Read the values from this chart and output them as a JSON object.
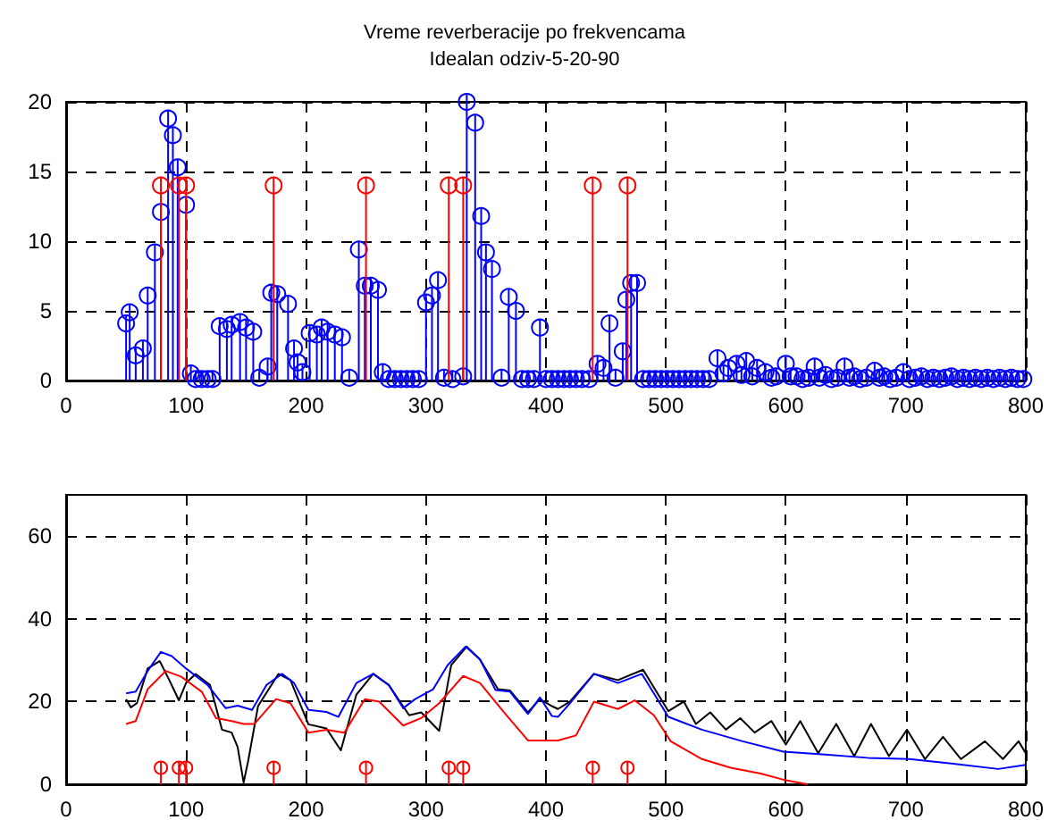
{
  "chart_data": [
    {
      "type": "lollipop",
      "title": "Vreme reverberacije po frekvencama",
      "subtitle": "Idealan odziv-5-20-90",
      "xlim": [
        0,
        800
      ],
      "xticks": [
        0,
        100,
        200,
        300,
        400,
        500,
        600,
        700,
        800
      ],
      "ylim": [
        0,
        20
      ],
      "yticks": [
        0,
        5,
        10,
        15,
        20
      ],
      "grid": true,
      "marker": "circle",
      "series": [
        {
          "color": "#0000ff",
          "x": [
            50,
            53,
            58,
            64,
            68,
            74,
            79,
            85,
            89,
            93,
            100,
            104,
            108,
            113,
            118,
            122,
            128,
            134,
            138,
            145,
            150,
            156,
            161,
            168,
            171,
            176,
            185,
            190,
            193,
            197,
            203,
            209,
            213,
            218,
            224,
            230,
            236,
            244,
            249,
            254,
            260,
            264,
            269,
            274,
            279,
            284,
            289,
            294,
            300,
            305,
            310,
            315,
            322,
            331,
            334,
            341,
            346,
            350,
            355,
            363,
            369,
            375,
            380,
            385,
            390,
            395,
            400,
            405,
            410,
            415,
            420,
            425,
            430,
            436,
            443,
            448,
            453,
            458,
            464,
            467,
            471,
            476,
            481,
            486,
            491,
            496,
            501,
            506,
            511,
            516,
            521,
            526,
            531,
            536,
            543,
            548,
            552,
            559,
            563,
            567,
            572,
            576,
            583,
            588,
            592,
            600,
            604,
            609,
            614,
            619,
            624,
            628,
            633,
            638,
            643,
            649,
            653,
            657,
            662,
            667,
            674,
            678,
            682,
            687,
            692,
            698,
            703,
            708,
            713,
            718,
            723,
            728,
            733,
            738,
            743,
            748,
            753,
            758,
            763,
            768,
            773,
            778,
            783,
            788,
            793,
            798
          ],
          "values": [
            4.1,
            4.9,
            1.8,
            2.3,
            6.1,
            9.2,
            12.1,
            18.8,
            17.6,
            15.3,
            12.6,
            0.5,
            0.1,
            0.1,
            0.1,
            0.1,
            3.9,
            3.7,
            4.0,
            4.2,
            3.8,
            3.5,
            0.2,
            1.0,
            6.3,
            6.2,
            5.5,
            2.3,
            1.3,
            0.6,
            3.4,
            3.3,
            3.8,
            3.5,
            3.3,
            3.1,
            0.2,
            9.4,
            6.8,
            6.8,
            6.5,
            0.6,
            0.1,
            0.1,
            0.1,
            0.1,
            0.1,
            0.1,
            5.6,
            6.1,
            7.2,
            0.2,
            0.1,
            0.3,
            20,
            18.5,
            11.8,
            9.2,
            8.0,
            0.2,
            6.0,
            5.0,
            0.1,
            0.1,
            0.1,
            3.8,
            0.1,
            0.1,
            0.1,
            0.1,
            0.1,
            0.1,
            0.1,
            0.1,
            1.2,
            0.9,
            4.1,
            0.2,
            2.1,
            5.8,
            7.0,
            7.0,
            0.1,
            0.1,
            0.1,
            0.1,
            0.1,
            0.1,
            0.1,
            0.1,
            0.1,
            0.1,
            0.1,
            0.1,
            1.6,
            0.5,
            0.9,
            1.2,
            0.4,
            1.4,
            0.3,
            0.9,
            0.6,
            0.2,
            0.3,
            1.2,
            0.3,
            0.3,
            0.1,
            0.2,
            1.0,
            0.2,
            0.4,
            0.1,
            0.2,
            1.0,
            0.2,
            0.3,
            0.1,
            0.2,
            0.7,
            0.2,
            0.3,
            0.1,
            0.2,
            0.6,
            0.1,
            0.2,
            0.3,
            0.1,
            0.2,
            0.1,
            0.2,
            0.3,
            0.1,
            0.2,
            0.1,
            0.2,
            0.1,
            0.2,
            0.1,
            0.2,
            0.1,
            0.2,
            0.1,
            0.1
          ]
        },
        {
          "color": "#ff0000",
          "x": [
            79,
            94,
            100,
            173,
            250,
            319,
            331,
            439,
            468
          ],
          "values": [
            14,
            14,
            14,
            14,
            14,
            14,
            14,
            14,
            14
          ]
        }
      ]
    },
    {
      "type": "line",
      "xlim": [
        0,
        800
      ],
      "xticks": [
        0,
        100,
        200,
        300,
        400,
        500,
        600,
        700,
        800
      ],
      "ylim": [
        0,
        70
      ],
      "yticks": [
        0,
        20,
        40,
        60
      ],
      "grid": true,
      "series": [
        {
          "color": "#000000",
          "x": [
            50,
            54,
            59,
            68,
            78,
            86,
            94,
            100,
            108,
            120,
            130,
            138,
            143,
            148,
            152,
            160,
            177,
            187,
            202,
            217,
            229,
            242,
            256,
            269,
            286,
            296,
            311,
            321,
            334,
            345,
            360,
            370,
            385,
            395,
            405,
            410,
            420,
            440,
            460,
            481,
            502,
            515,
            525,
            537,
            550,
            562,
            574,
            588,
            600,
            612,
            627,
            642,
            657,
            671,
            686,
            701,
            716,
            731,
            746,
            766,
            781,
            794,
            800
          ],
          "values": [
            20.6,
            18.6,
            19.6,
            28,
            29.8,
            25.2,
            20.3,
            24.5,
            26.7,
            24,
            13.2,
            12.5,
            9,
            0.4,
            6,
            18.9,
            26.7,
            25.2,
            14.5,
            13.5,
            8.2,
            21.7,
            26.7,
            24,
            16.7,
            17.4,
            12.9,
            28.8,
            33.3,
            30.2,
            23,
            22.7,
            17.4,
            20.6,
            18.9,
            18.2,
            20,
            26.7,
            25.2,
            27.7,
            17.7,
            20,
            14.6,
            17.4,
            13.2,
            16,
            12.5,
            15.3,
            9.6,
            15.3,
            7.5,
            14.6,
            6.8,
            14.6,
            6.8,
            13.2,
            6.1,
            11.5,
            6.1,
            10.4,
            6.1,
            10.4,
            7.5
          ]
        },
        {
          "color": "#0000ff",
          "x": [
            50,
            58,
            68,
            79,
            88,
            100,
            118,
            133,
            143,
            155,
            167,
            180,
            190,
            202,
            217,
            227,
            242,
            256,
            269,
            281,
            291,
            306,
            318,
            333,
            345,
            358,
            370,
            385,
            395,
            405,
            410,
            420,
            440,
            460,
            480,
            502,
            530,
            564,
            598,
            633,
            668,
            703,
            738,
            777,
            800
          ],
          "values": [
            22,
            22.4,
            27.4,
            32,
            31,
            28,
            24,
            18.4,
            19,
            18,
            24,
            26.7,
            24.5,
            18,
            17.5,
            16.3,
            24.5,
            26.7,
            24,
            18.4,
            20.6,
            23,
            28.8,
            33.3,
            30.2,
            22.8,
            22.4,
            17,
            21,
            16.5,
            16.3,
            19.6,
            26.7,
            24.5,
            26.7,
            16.3,
            13.2,
            10.4,
            7.9,
            7.2,
            6.4,
            6.1,
            5,
            3.7,
            4.7
          ]
        },
        {
          "color": "#ff0000",
          "x": [
            50,
            58,
            68,
            83,
            96,
            113,
            125,
            138,
            148,
            157,
            175,
            187,
            202,
            217,
            232,
            249,
            261,
            281,
            296,
            311,
            331,
            345,
            365,
            385,
            405,
            410,
            425,
            440,
            460,
            474,
            490,
            504,
            530,
            554,
            579,
            598,
            618
          ],
          "values": [
            14.6,
            15.3,
            23,
            27.4,
            26,
            22.4,
            16,
            15.3,
            14.6,
            14.6,
            20.6,
            19.6,
            12.5,
            13.2,
            12.5,
            20.6,
            20,
            14.2,
            16,
            19.6,
            26.2,
            24.5,
            17.4,
            10.6,
            10.6,
            10.6,
            11.8,
            20,
            18.2,
            20.3,
            16.7,
            10.4,
            6.1,
            4,
            2.6,
            1.1,
            0
          ]
        },
        {
          "type": "lollipop",
          "marker": "circle",
          "color": "#ff0000",
          "x": [
            79,
            94,
            100,
            173,
            250,
            319,
            331,
            439,
            468
          ],
          "values": [
            4,
            4,
            4,
            4,
            4,
            4,
            4,
            4,
            4
          ]
        }
      ]
    }
  ]
}
